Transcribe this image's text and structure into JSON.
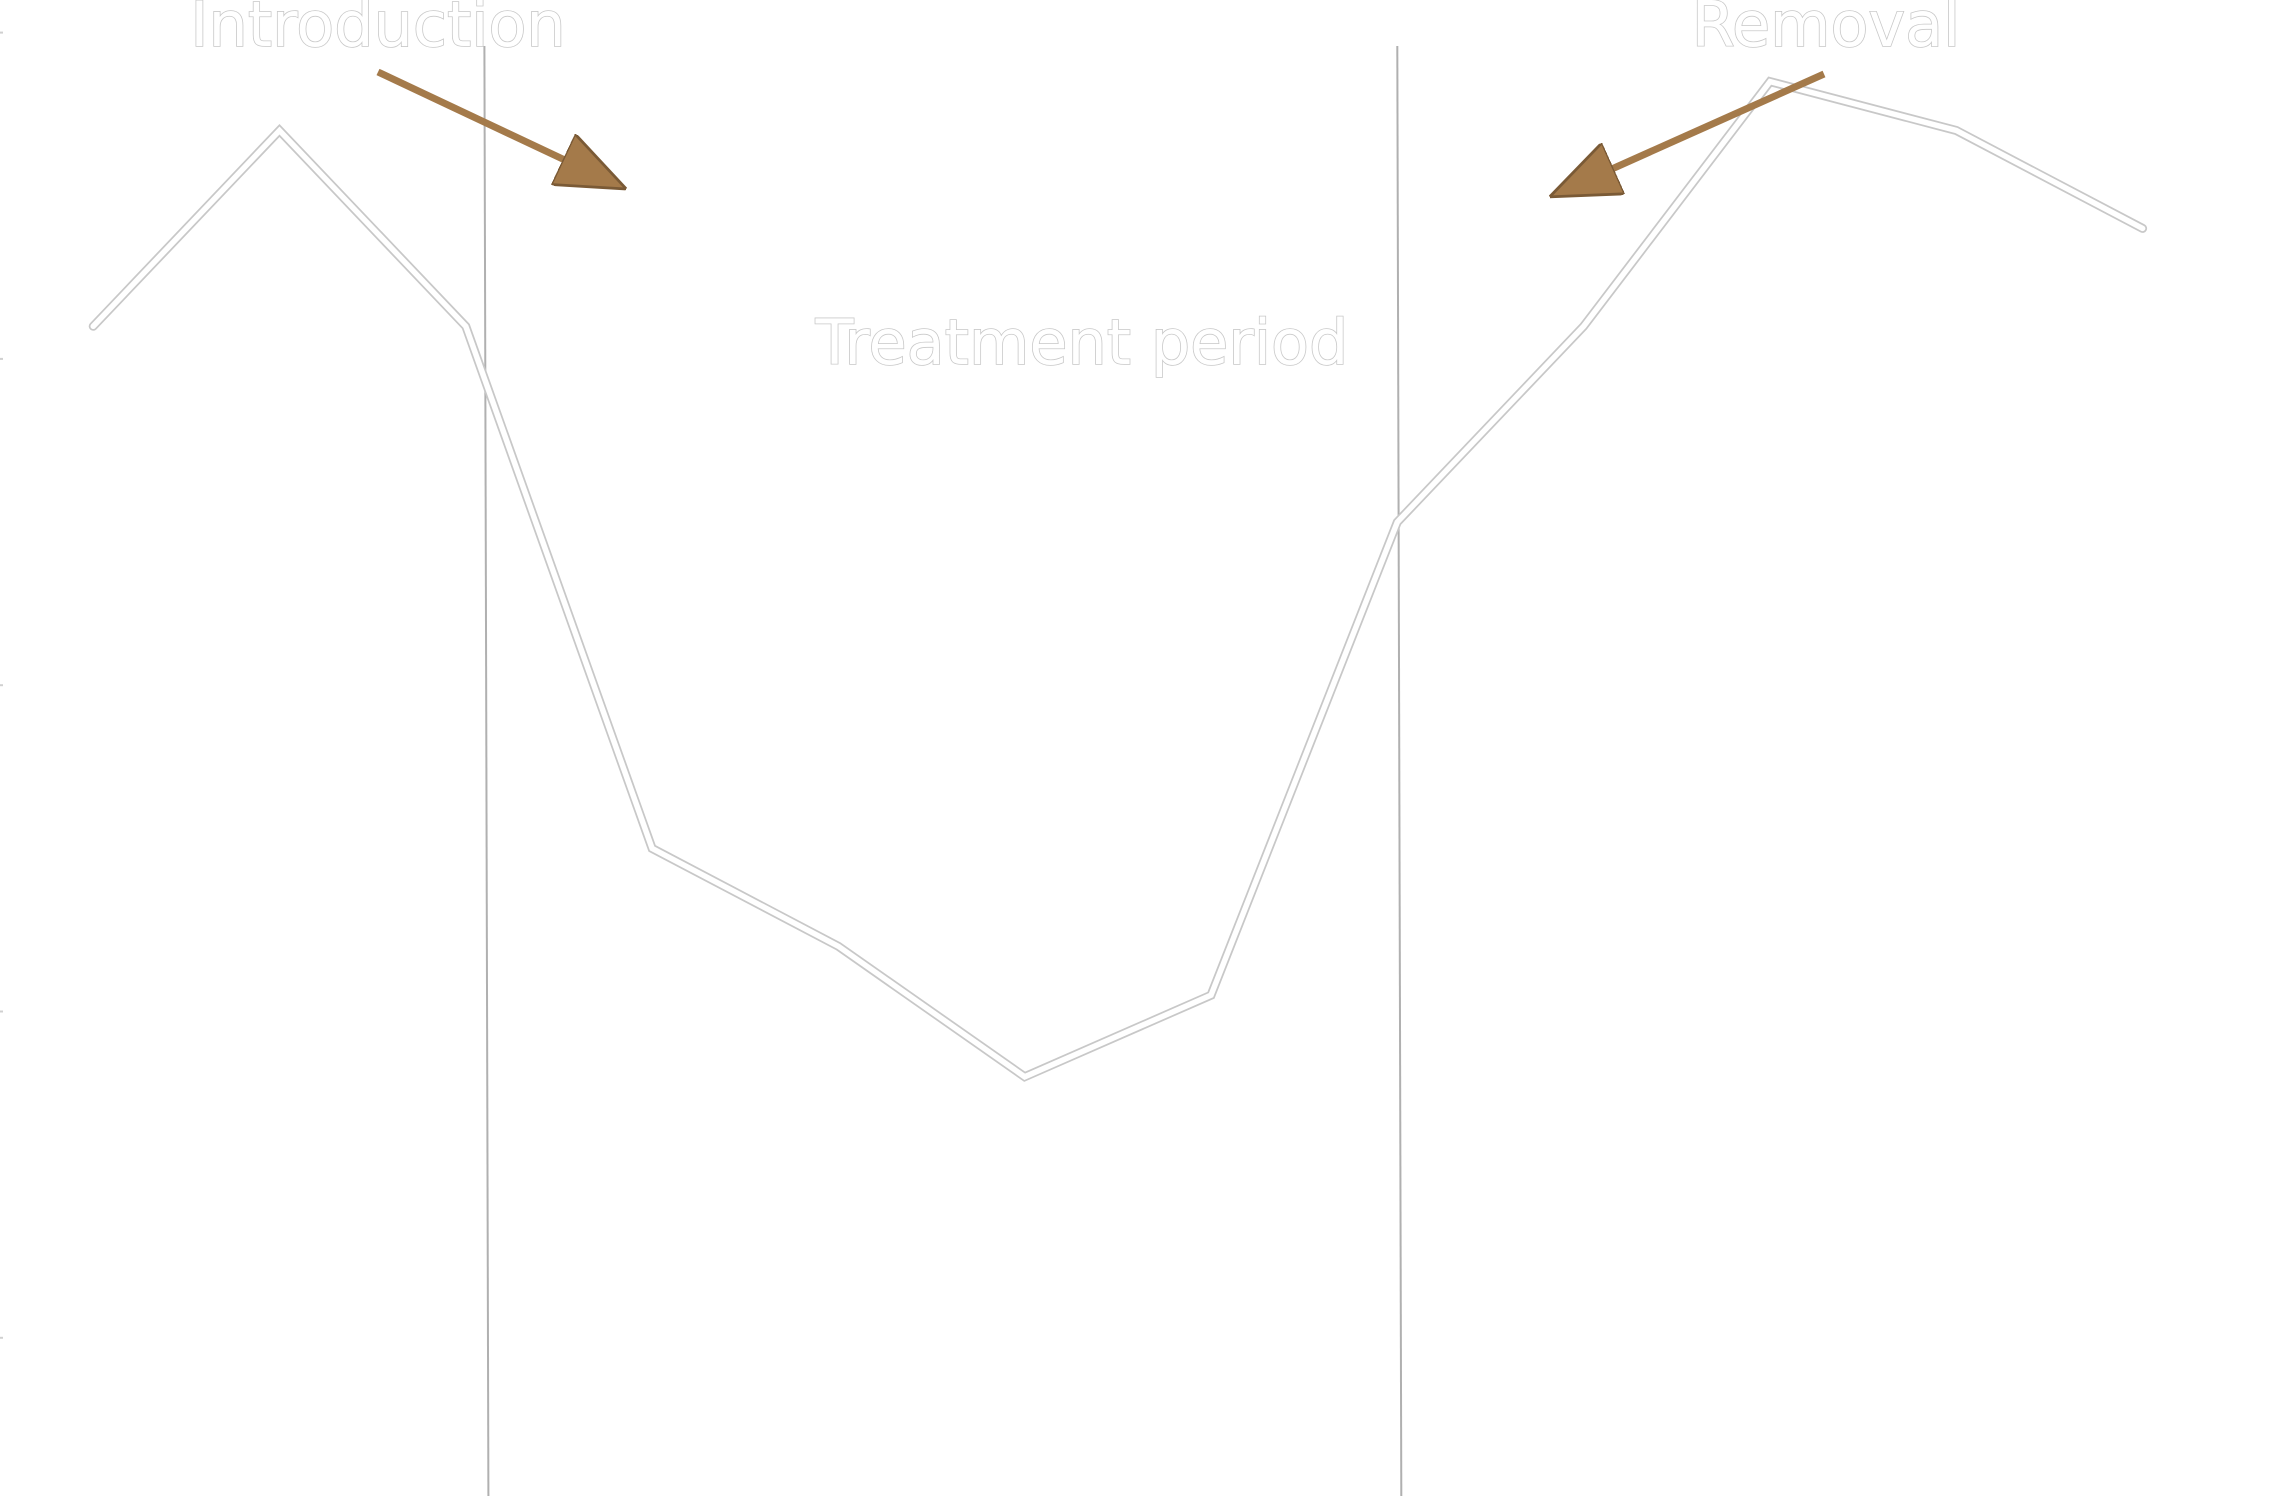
{
  "chart_data": {
    "type": "line",
    "title": "",
    "xlabel": "",
    "ylabel": "",
    "x": [
      1,
      2,
      3,
      4,
      5,
      6,
      7,
      8,
      9,
      10,
      11,
      12
    ],
    "series": [
      {
        "values": [
          6.2,
          7.4,
          6.2,
          3.0,
          2.4,
          1.6,
          2.1,
          5.0,
          6.2,
          7.7,
          7.4,
          6.8
        ]
      }
    ],
    "xlim": [
      0.5,
      12.7
    ],
    "ylim": [
      -1.0,
      8.2
    ],
    "phase_boundaries": [
      3.1,
      8.0
    ],
    "grid": false,
    "legend": "none",
    "annotations": {
      "introduction": "Introduction",
      "removal": "Removal",
      "treatment_period": "Treatment period"
    },
    "colors": {
      "line_outline": "#c8c8c8",
      "line_fill": "#ffffff",
      "divider": "#b0b0b0",
      "arrow": "#a47a4a",
      "text_outline": "#c8c8c8"
    }
  }
}
